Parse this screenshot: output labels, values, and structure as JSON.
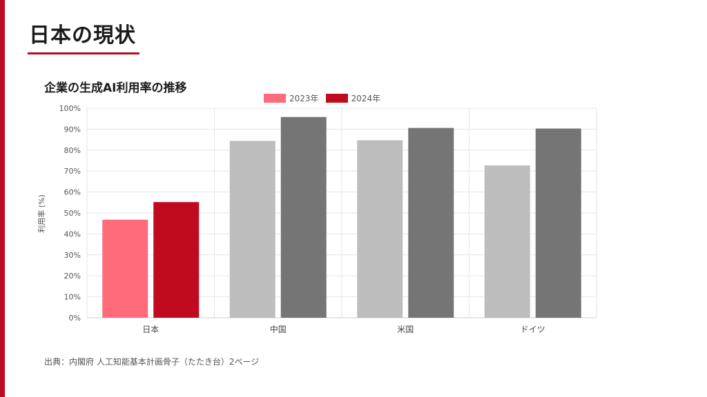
{
  "page": {
    "title": "日本の現状",
    "source": "出典：内閣府 人工知能基本計画骨子（たたき台）2ページ"
  },
  "colors": {
    "accent": "#c00a1e",
    "japan_2023": "#ff6b7a",
    "japan_2024": "#c00a1e",
    "other_2023": "#bdbdbd",
    "other_2024": "#757575",
    "grid": "#e6e6e6"
  },
  "chart_data": {
    "type": "bar",
    "title": "企業の生成AI利用率の推移",
    "xlabel": "",
    "ylabel": "利用率 (%)",
    "categories": [
      "日本",
      "中国",
      "米国",
      "ドイツ"
    ],
    "series": [
      {
        "name": "2023年",
        "values": [
          46.8,
          84.4,
          84.7,
          72.7
        ]
      },
      {
        "name": "2024年",
        "values": [
          55.2,
          95.8,
          90.6,
          90.3
        ]
      }
    ],
    "ylim": [
      0,
      100
    ],
    "yticks": [
      "0%",
      "10%",
      "20%",
      "30%",
      "40%",
      "50%",
      "60%",
      "70%",
      "80%",
      "90%",
      "100%"
    ],
    "grid": true,
    "legend_position": "top-center"
  }
}
